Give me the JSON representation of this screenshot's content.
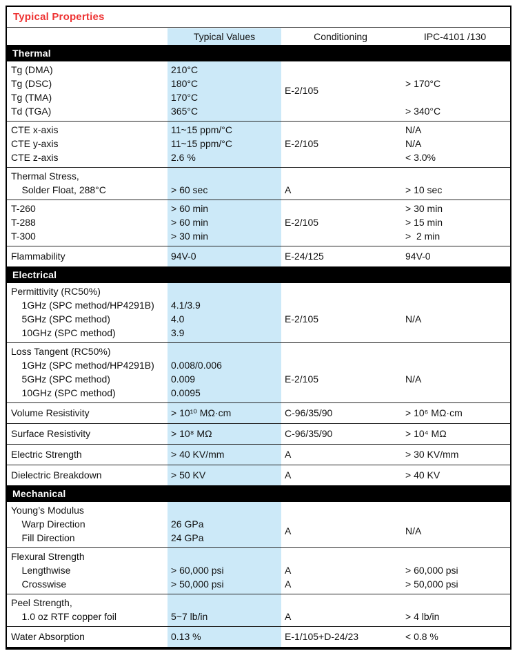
{
  "title": "Typical Properties",
  "columns": {
    "values": "Typical Values",
    "conditioning": "Conditioning",
    "ipc": "IPC-4101 /130"
  },
  "colors": {
    "accent_red": "#ee3333",
    "highlight_blue": "#cce9f8",
    "section_bar_black": "#000000",
    "section_bar_text": "#ffffff",
    "body_text": "#111111"
  },
  "sections": [
    {
      "name": "Thermal",
      "groups": [
        {
          "property": [
            "Tg (DMA)",
            "Tg (DSC)",
            "Tg (TMA)",
            "Td (TGA)"
          ],
          "values": [
            "210°C",
            "180°C",
            "170°C",
            "365°C"
          ],
          "conditioning": {
            "mode": "center",
            "text": "E-2/105"
          },
          "ipc": [
            "",
            "> 170°C",
            "",
            "> 340°C"
          ]
        },
        {
          "property": [
            "CTE x-axis",
            "CTE y-axis",
            "CTE z-axis"
          ],
          "values": [
            "11~15 ppm/°C",
            "11~15 ppm/°C",
            "2.6 %"
          ],
          "conditioning": {
            "mode": "center",
            "text": "E-2/105"
          },
          "ipc": [
            "N/A",
            "N/A",
            "< 3.0%"
          ]
        },
        {
          "property": [
            "Thermal Stress,",
            "    Solder Float, 288°C"
          ],
          "values": [
            "",
            "> 60 sec"
          ],
          "conditioning": [
            "",
            "A"
          ],
          "ipc": [
            "",
            "> 10 sec"
          ]
        },
        {
          "property": [
            "T-260",
            "T-288",
            "T-300"
          ],
          "values": [
            "> 60 min",
            "> 60 min",
            "> 30 min"
          ],
          "conditioning": {
            "mode": "center",
            "text": "E-2/105"
          },
          "ipc": [
            "> 30 min",
            "> 15 min",
            ">  2 min"
          ]
        },
        {
          "property": [
            "Flammability"
          ],
          "values": [
            "94V-0"
          ],
          "conditioning": [
            "E-24/125"
          ],
          "ipc": [
            "94V-0"
          ]
        }
      ]
    },
    {
      "name": "Electrical",
      "groups": [
        {
          "property": [
            "Permittivity (RC50%)",
            "    1GHz (SPC method/HP4291B)",
            "    5GHz (SPC method)",
            "    10GHz (SPC method)"
          ],
          "values": [
            "",
            "4.1/3.9",
            "4.0",
            "3.9"
          ],
          "conditioning": {
            "mode": "center",
            "skip_first": true,
            "text": "E-2/105"
          },
          "ipc": {
            "mode": "center",
            "skip_first": true,
            "text": "N/A"
          }
        },
        {
          "property": [
            "Loss Tangent (RC50%)",
            "    1GHz (SPC method/HP4291B)",
            "    5GHz (SPC method)",
            "    10GHz (SPC method)"
          ],
          "values": [
            "",
            "0.008/0.006",
            "0.009",
            "0.0095"
          ],
          "conditioning": {
            "mode": "center",
            "skip_first": true,
            "text": "E-2/105"
          },
          "ipc": {
            "mode": "center",
            "skip_first": true,
            "text": "N/A"
          }
        },
        {
          "property": [
            "Volume Resistivity"
          ],
          "values": [
            "> 10¹⁰ MΩ·cm"
          ],
          "conditioning": [
            "C-96/35/90"
          ],
          "ipc": [
            "> 10⁶ MΩ·cm"
          ]
        },
        {
          "property": [
            "Surface Resistivity"
          ],
          "values": [
            "> 10⁸ MΩ"
          ],
          "conditioning": [
            "C-96/35/90"
          ],
          "ipc": [
            "> 10⁴ MΩ"
          ]
        },
        {
          "property": [
            "Electric Strength"
          ],
          "values": [
            "> 40 KV/mm"
          ],
          "conditioning": [
            "A"
          ],
          "ipc": [
            "> 30 KV/mm"
          ]
        },
        {
          "property": [
            "Dielectric Breakdown"
          ],
          "values": [
            "> 50 KV"
          ],
          "conditioning": [
            "A"
          ],
          "ipc": [
            "> 40 KV"
          ]
        }
      ]
    },
    {
      "name": "Mechanical",
      "groups": [
        {
          "property": [
            "Young’s Modulus",
            "    Warp Direction",
            "    Fill Direction"
          ],
          "values": [
            "",
            "26 GPa",
            "24 GPa"
          ],
          "conditioning": {
            "mode": "center",
            "skip_first": true,
            "text": "A"
          },
          "ipc": {
            "mode": "center",
            "skip_first": true,
            "text": "N/A"
          }
        },
        {
          "property": [
            "Flexural Strength",
            "    Lengthwise",
            "    Crosswise"
          ],
          "values": [
            "",
            "> 60,000 psi",
            "> 50,000 psi"
          ],
          "conditioning": [
            "",
            "A",
            "A"
          ],
          "ipc": [
            "",
            "> 60,000 psi",
            "> 50,000 psi"
          ]
        },
        {
          "property": [
            "Peel Strength,",
            "    1.0 oz RTF copper foil"
          ],
          "values": [
            "",
            "5~7 lb/in"
          ],
          "conditioning": [
            "",
            "A"
          ],
          "ipc": [
            "",
            "> 4 lb/in"
          ]
        },
        {
          "property": [
            "Water Absorption"
          ],
          "values": [
            "0.13 %"
          ],
          "conditioning": [
            "E-1/105+D-24/23"
          ],
          "ipc": [
            "< 0.8 %"
          ]
        }
      ]
    }
  ]
}
